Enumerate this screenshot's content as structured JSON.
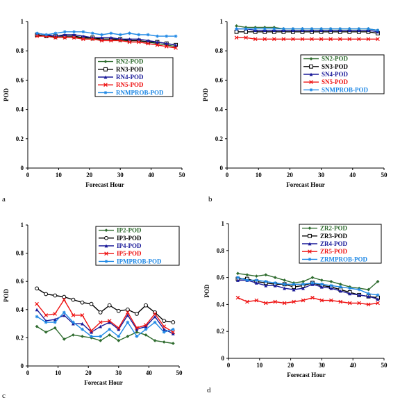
{
  "chart_data": [
    {
      "panel": "a",
      "type": "line",
      "xlabel": "Forecast Hour",
      "ylabel": "POD",
      "xlim": [
        0,
        50
      ],
      "ylim": [
        0,
        1
      ],
      "xticks": [
        "0",
        "10",
        "20",
        "30",
        "40",
        "50"
      ],
      "yticks": [
        "0",
        "0.2",
        "0.4",
        "0.6",
        "0.8",
        "1"
      ],
      "x": [
        3,
        6,
        9,
        12,
        15,
        18,
        21,
        24,
        27,
        30,
        33,
        36,
        39,
        42,
        45,
        48
      ],
      "series": [
        {
          "name": "RN2-POD",
          "color": "#2e6b2e",
          "marker": "diamond",
          "values": [
            0.91,
            0.9,
            0.89,
            0.89,
            0.89,
            0.89,
            0.88,
            0.88,
            0.88,
            0.87,
            0.87,
            0.87,
            0.86,
            0.85,
            0.84,
            0.83
          ]
        },
        {
          "name": "RN3-POD",
          "color": "#000000",
          "marker": "square",
          "values": [
            0.91,
            0.9,
            0.9,
            0.9,
            0.9,
            0.89,
            0.89,
            0.88,
            0.88,
            0.88,
            0.87,
            0.87,
            0.86,
            0.86,
            0.85,
            0.84
          ]
        },
        {
          "name": "RN4-POD",
          "color": "#1a1a99",
          "marker": "triangle",
          "values": [
            0.92,
            0.91,
            0.9,
            0.91,
            0.91,
            0.9,
            0.89,
            0.89,
            0.89,
            0.88,
            0.88,
            0.88,
            0.87,
            0.86,
            0.85,
            0.84
          ]
        },
        {
          "name": "RN5-POD",
          "color": "#ee1111",
          "marker": "x",
          "values": [
            0.9,
            0.9,
            0.89,
            0.89,
            0.89,
            0.88,
            0.88,
            0.87,
            0.87,
            0.87,
            0.86,
            0.86,
            0.85,
            0.84,
            0.83,
            0.82
          ]
        },
        {
          "name": "RNMPROB-POD",
          "color": "#1e88e5",
          "marker": "star",
          "values": [
            0.92,
            0.91,
            0.92,
            0.93,
            0.93,
            0.93,
            0.92,
            0.91,
            0.92,
            0.91,
            0.92,
            0.91,
            0.91,
            0.9,
            0.9,
            0.9
          ]
        }
      ]
    },
    {
      "panel": "b",
      "type": "line",
      "xlabel": "Forecast Hour",
      "ylabel": "POD",
      "xlim": [
        0,
        50
      ],
      "ylim": [
        0,
        1
      ],
      "xticks": [
        "0",
        "10",
        "20",
        "30",
        "40",
        "50"
      ],
      "yticks": [
        "0",
        "0.2",
        "0.4",
        "0.6",
        "0.8",
        "1"
      ],
      "x": [
        3,
        6,
        9,
        12,
        15,
        18,
        21,
        24,
        27,
        30,
        33,
        36,
        39,
        42,
        45,
        48
      ],
      "series": [
        {
          "name": "SN2-POD",
          "color": "#2e6b2e",
          "marker": "diamond",
          "values": [
            0.97,
            0.96,
            0.96,
            0.96,
            0.96,
            0.95,
            0.95,
            0.95,
            0.95,
            0.95,
            0.95,
            0.95,
            0.95,
            0.95,
            0.95,
            0.94
          ]
        },
        {
          "name": "SN3-POD",
          "color": "#000000",
          "marker": "square",
          "values": [
            0.93,
            0.93,
            0.93,
            0.93,
            0.93,
            0.93,
            0.93,
            0.93,
            0.93,
            0.93,
            0.93,
            0.93,
            0.93,
            0.93,
            0.93,
            0.92
          ]
        },
        {
          "name": "SN4-POD",
          "color": "#1a1a99",
          "marker": "triangle",
          "values": [
            0.95,
            0.95,
            0.94,
            0.94,
            0.94,
            0.94,
            0.94,
            0.94,
            0.94,
            0.94,
            0.94,
            0.94,
            0.94,
            0.94,
            0.94,
            0.93
          ]
        },
        {
          "name": "SN5-POD",
          "color": "#ee1111",
          "marker": "x",
          "values": [
            0.89,
            0.89,
            0.88,
            0.88,
            0.88,
            0.88,
            0.88,
            0.88,
            0.88,
            0.88,
            0.88,
            0.88,
            0.88,
            0.88,
            0.88,
            0.88
          ]
        },
        {
          "name": "SNMPROB-POD",
          "color": "#1e88e5",
          "marker": "star",
          "values": [
            0.95,
            0.95,
            0.95,
            0.95,
            0.95,
            0.95,
            0.95,
            0.95,
            0.95,
            0.95,
            0.95,
            0.95,
            0.95,
            0.95,
            0.95,
            0.94
          ]
        }
      ]
    },
    {
      "panel": "c",
      "type": "line",
      "xlabel": "Forecast Hour",
      "ylabel": "POD",
      "xlim": [
        0,
        50
      ],
      "ylim": [
        0,
        1
      ],
      "xticks": [
        "0",
        "10",
        "20",
        "30",
        "40",
        "50"
      ],
      "yticks": [
        "0",
        "0.2",
        "0.4",
        "0.6",
        "0.8",
        "1"
      ],
      "x": [
        3,
        6,
        9,
        12,
        15,
        18,
        21,
        24,
        27,
        30,
        33,
        36,
        39,
        42,
        45,
        48
      ],
      "series": [
        {
          "name": "IP2-POD",
          "color": "#2e6b2e",
          "marker": "diamond",
          "values": [
            0.28,
            0.24,
            0.27,
            0.19,
            0.22,
            0.21,
            0.2,
            0.18,
            0.22,
            0.18,
            0.21,
            0.24,
            0.22,
            0.18,
            0.17,
            0.16
          ]
        },
        {
          "name": "IP3-POD",
          "color": "#000000",
          "marker": "circle",
          "values": [
            0.55,
            0.51,
            0.5,
            0.49,
            0.47,
            0.45,
            0.44,
            0.38,
            0.43,
            0.39,
            0.4,
            0.37,
            0.43,
            0.38,
            0.32,
            0.31
          ]
        },
        {
          "name": "IP4-POD",
          "color": "#1a1a99",
          "marker": "triangle",
          "values": [
            0.4,
            0.32,
            0.33,
            0.36,
            0.3,
            0.3,
            0.24,
            0.28,
            0.31,
            0.26,
            0.36,
            0.26,
            0.28,
            0.35,
            0.26,
            0.23
          ]
        },
        {
          "name": "IP5-POD",
          "color": "#ee1111",
          "marker": "x",
          "values": [
            0.44,
            0.36,
            0.37,
            0.47,
            0.36,
            0.36,
            0.25,
            0.31,
            0.32,
            0.27,
            0.38,
            0.27,
            0.29,
            0.37,
            0.28,
            0.24
          ]
        },
        {
          "name": "IPMPROB-POD",
          "color": "#1e88e5",
          "marker": "star",
          "values": [
            0.35,
            0.31,
            0.31,
            0.38,
            0.31,
            0.26,
            0.21,
            0.21,
            0.26,
            0.21,
            0.31,
            0.21,
            0.26,
            0.31,
            0.24,
            0.26
          ]
        }
      ]
    },
    {
      "panel": "d",
      "type": "line",
      "xlabel": "Forecast Hour",
      "ylabel": "POD",
      "xlim": [
        0,
        50
      ],
      "ylim": [
        0,
        1
      ],
      "xticks": [
        "0",
        "10",
        "20",
        "30",
        "40",
        "50"
      ],
      "yticks": [
        "0",
        "0.2",
        "0.4",
        "0.6",
        "0.8",
        "1"
      ],
      "x": [
        3,
        6,
        9,
        12,
        15,
        18,
        21,
        24,
        27,
        30,
        33,
        36,
        39,
        42,
        45,
        48
      ],
      "series": [
        {
          "name": "ZR2-POD",
          "color": "#2e6b2e",
          "marker": "diamond",
          "values": [
            0.63,
            0.62,
            0.61,
            0.62,
            0.6,
            0.58,
            0.56,
            0.57,
            0.6,
            0.58,
            0.57,
            0.55,
            0.53,
            0.52,
            0.51,
            0.57
          ]
        },
        {
          "name": "ZR3-POD",
          "color": "#000000",
          "marker": "square",
          "values": [
            0.59,
            0.59,
            0.57,
            0.56,
            0.55,
            0.55,
            0.53,
            0.54,
            0.56,
            0.54,
            0.53,
            0.51,
            0.49,
            0.47,
            0.46,
            0.45
          ]
        },
        {
          "name": "ZR4-POD",
          "color": "#1a1a99",
          "marker": "triangle",
          "values": [
            0.58,
            0.58,
            0.56,
            0.54,
            0.54,
            0.52,
            0.51,
            0.52,
            0.55,
            0.53,
            0.52,
            0.5,
            0.48,
            0.47,
            0.46,
            0.44
          ]
        },
        {
          "name": "ZR5-POD",
          "color": "#ee1111",
          "marker": "x",
          "values": [
            0.45,
            0.42,
            0.43,
            0.41,
            0.42,
            0.41,
            0.42,
            0.43,
            0.45,
            0.43,
            0.43,
            0.42,
            0.41,
            0.41,
            0.4,
            0.41
          ]
        },
        {
          "name": "ZRMPROB-POD",
          "color": "#1e88e5",
          "marker": "star",
          "values": [
            0.6,
            0.58,
            0.58,
            0.57,
            0.56,
            0.55,
            0.55,
            0.55,
            0.56,
            0.55,
            0.54,
            0.53,
            0.52,
            0.51,
            0.48,
            0.47
          ]
        }
      ]
    }
  ]
}
